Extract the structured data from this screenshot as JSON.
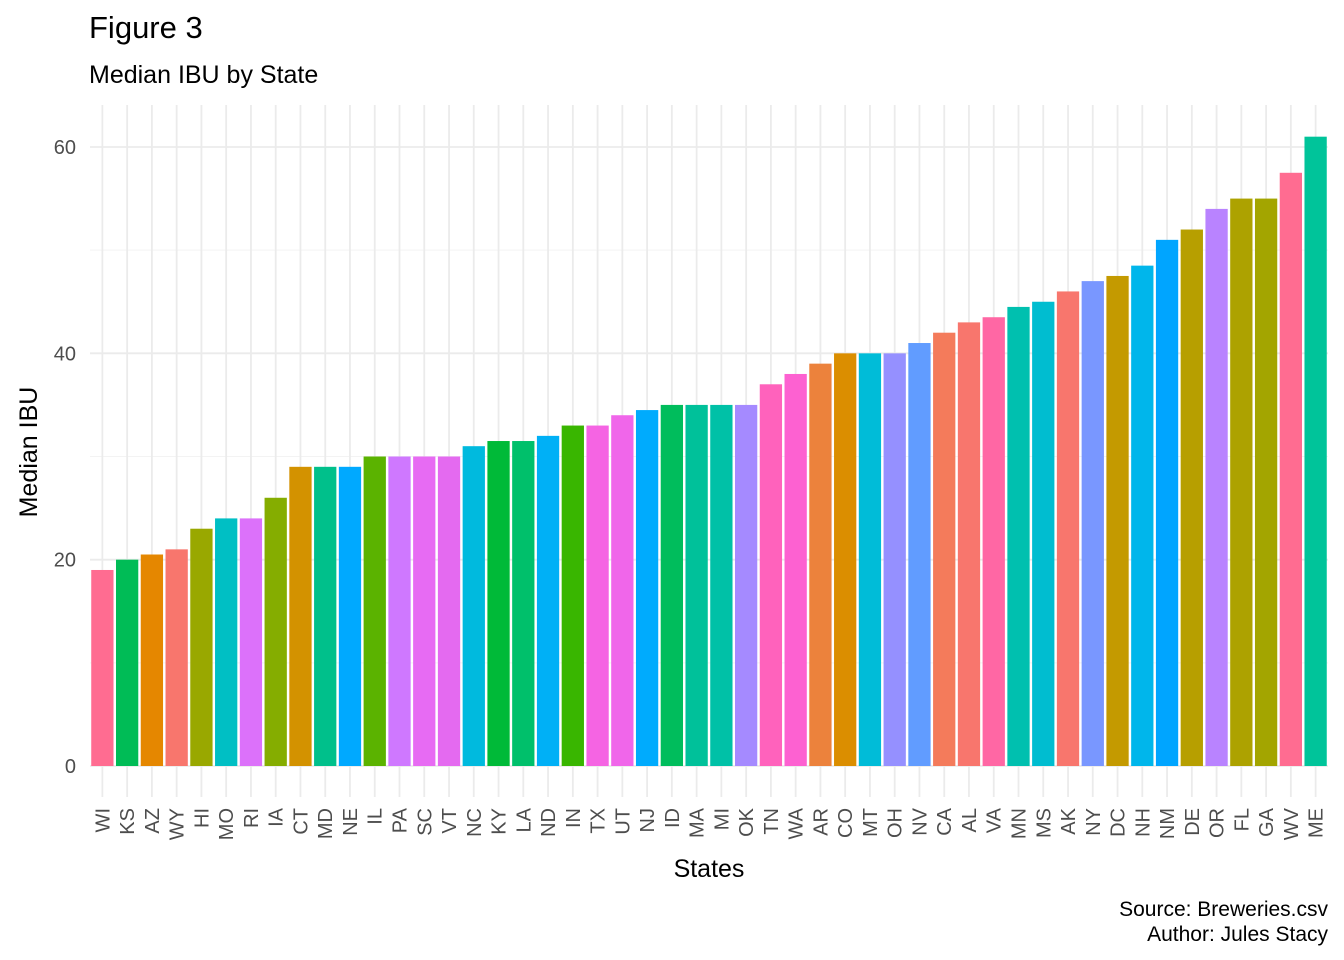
{
  "chart_data": {
    "type": "bar",
    "title": "Figure 3",
    "subtitle": "Median IBU by State",
    "xlabel": "States",
    "ylabel": "Median IBU",
    "caption": [
      "Source: Breweries.csv",
      "Author: Jules Stacy"
    ],
    "ylim": [
      -3.2,
      63.4
    ],
    "yticks": [
      0,
      20,
      40,
      60
    ],
    "grid": true,
    "legend": "none",
    "categories": [
      "WI",
      "KS",
      "AZ",
      "WY",
      "HI",
      "MO",
      "RI",
      "IA",
      "CT",
      "MD",
      "NE",
      "IL",
      "PA",
      "SC",
      "VT",
      "NC",
      "KY",
      "LA",
      "ND",
      "IN",
      "TX",
      "UT",
      "NJ",
      "ID",
      "MA",
      "MI",
      "OK",
      "TN",
      "WA",
      "AR",
      "CO",
      "MT",
      "OH",
      "NV",
      "CA",
      "AL",
      "VA",
      "MN",
      "MS",
      "AK",
      "NY",
      "DC",
      "NH",
      "NM",
      "DE",
      "OR",
      "FL",
      "GA",
      "WV",
      "ME"
    ],
    "values": [
      19,
      20,
      20.5,
      21,
      23,
      24,
      24,
      26,
      29,
      29,
      29,
      30,
      30,
      30,
      30,
      31,
      31.5,
      31.5,
      32,
      33,
      33,
      34,
      34.5,
      35,
      35,
      35,
      35,
      37,
      38,
      39,
      40,
      40,
      40,
      41,
      42,
      43,
      43.5,
      44.5,
      45,
      46,
      47,
      47.5,
      48.5,
      51,
      52,
      54,
      55,
      55,
      57.5,
      61
    ],
    "colors": [
      "#FF6C91",
      "#00BC56",
      "#E58700",
      "#F8766D",
      "#99A800",
      "#00BFC4",
      "#DC71FA",
      "#85AD00",
      "#D39200",
      "#00C08B",
      "#00A9FF",
      "#5BB300",
      "#CF78FF",
      "#E76BF3",
      "#E46AF0",
      "#00BADE",
      "#00BA38",
      "#00C06B",
      "#00B0F6",
      "#39B600",
      "#F564E3",
      "#F066EA",
      "#00ABFD",
      "#00BD5C",
      "#00C19A",
      "#00C1A7",
      "#A58AFF",
      "#FF62BC",
      "#FD61D1",
      "#EC823C",
      "#DB8E00",
      "#00BCD8",
      "#9590FF",
      "#619CFF",
      "#F47B5B",
      "#F8766D",
      "#FF67A4",
      "#00C0AF",
      "#00BDD0",
      "#F8766D",
      "#7997FF",
      "#C49A00",
      "#00B6EB",
      "#00A5FF",
      "#B79F00",
      "#B983FF",
      "#ADA200",
      "#A3A500",
      "#FF6C91",
      "#00C49A"
    ]
  }
}
